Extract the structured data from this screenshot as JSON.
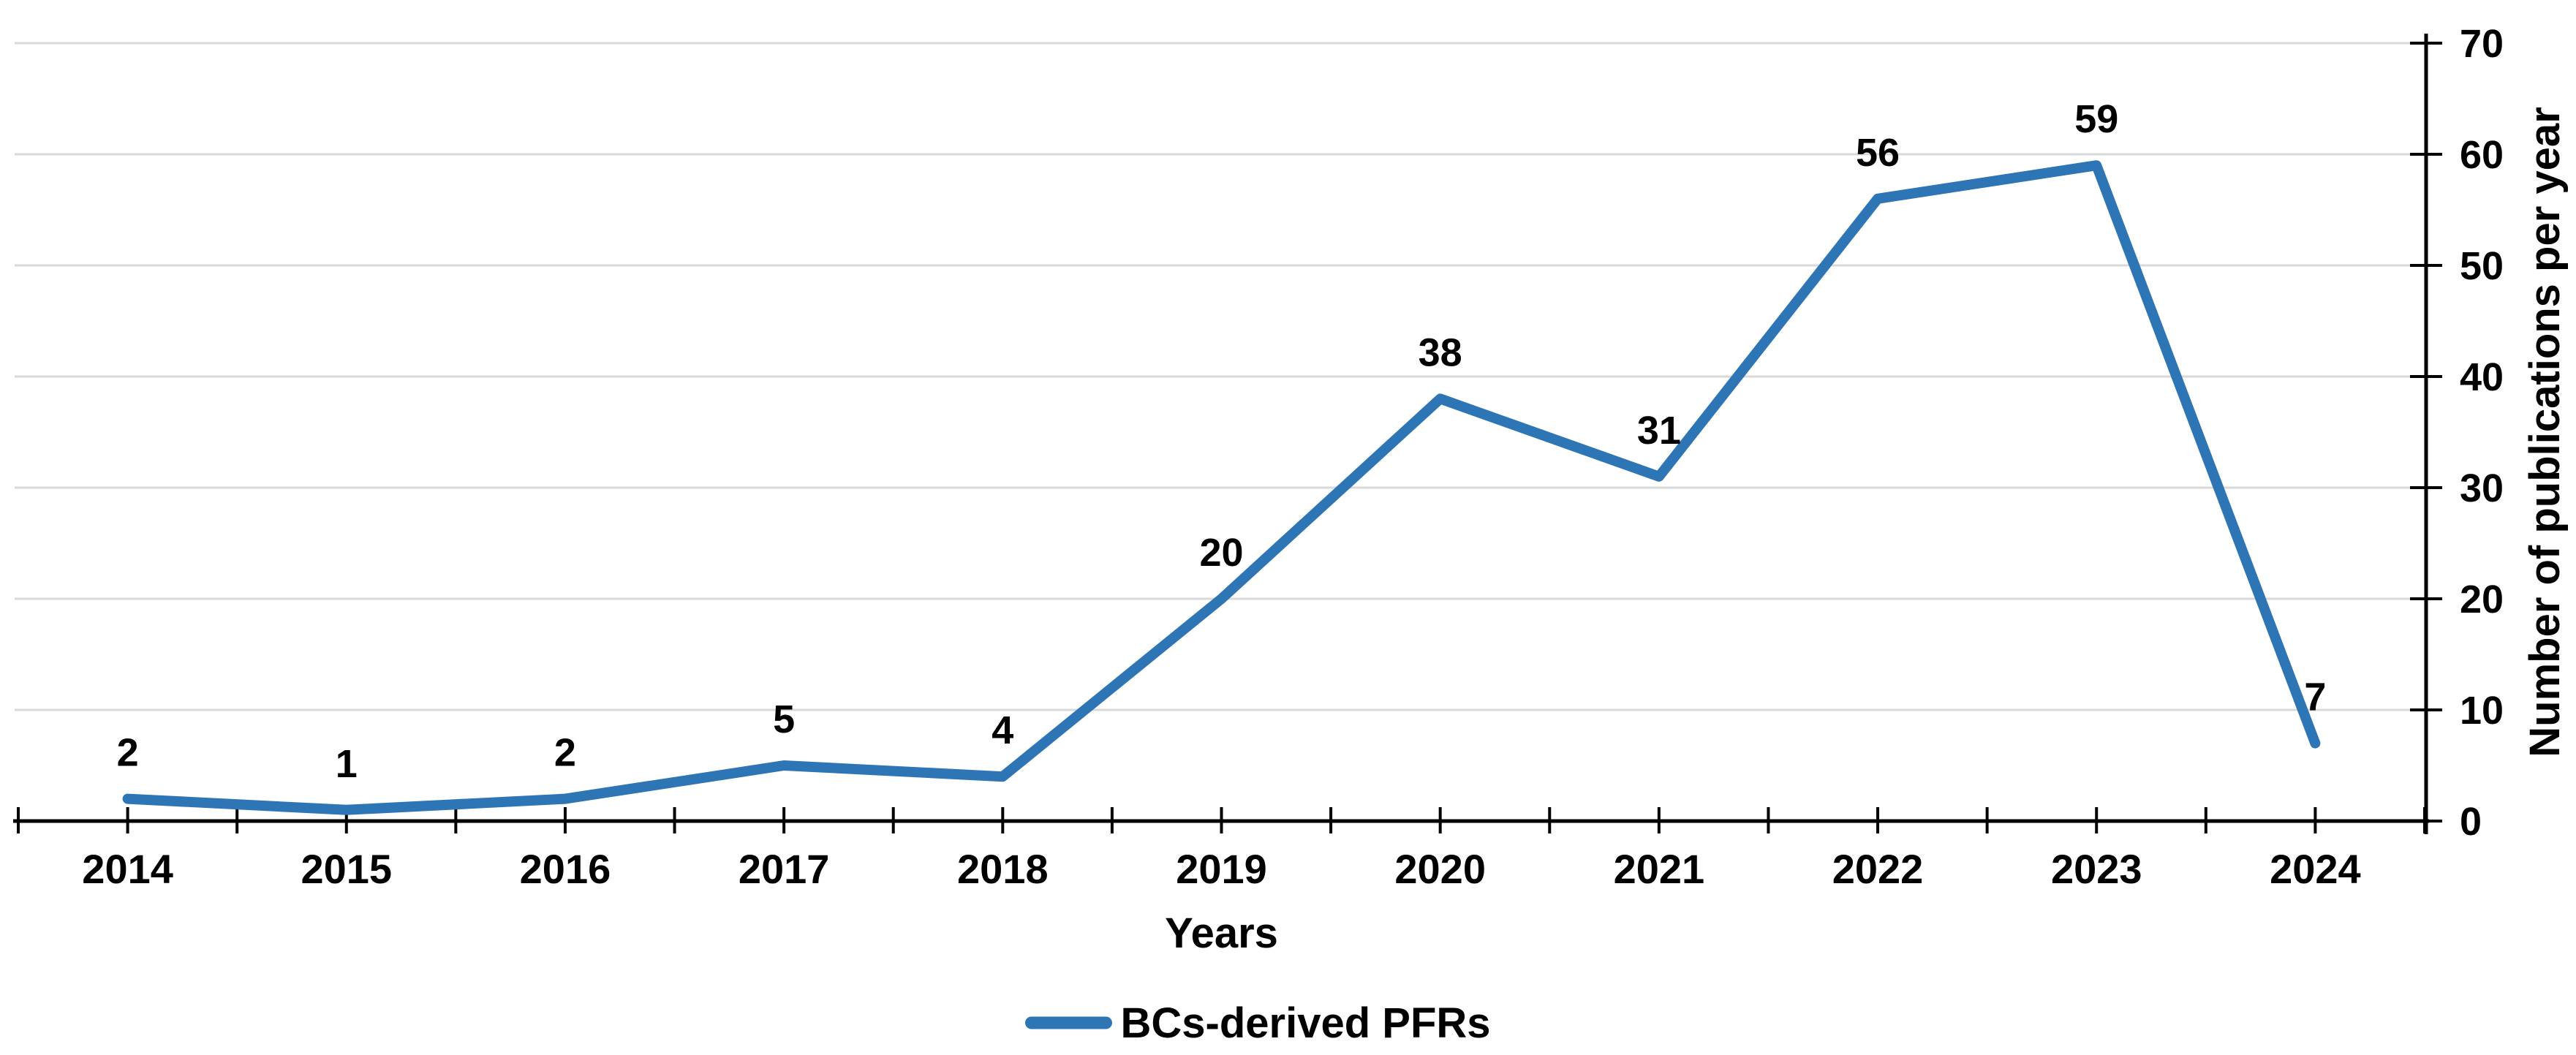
{
  "chart_data": {
    "type": "line",
    "title": "",
    "xlabel": "Years",
    "ylabel": "Number of publications per year",
    "categories": [
      "2014",
      "2015",
      "2016",
      "2017",
      "2018",
      "2019",
      "2020",
      "2021",
      "2022",
      "2023",
      "2024"
    ],
    "series": [
      {
        "name": "BCs-derived PFRs",
        "color": "#2E75B6",
        "values": [
          2,
          1,
          2,
          5,
          4,
          20,
          38,
          31,
          56,
          59,
          7
        ]
      }
    ],
    "data_label_values": [
      "2",
      "1",
      "2",
      "5",
      "4",
      "20",
      "38",
      "31",
      "56",
      "59",
      "7"
    ],
    "ylim": [
      0,
      70
    ],
    "yticks": [
      0,
      10,
      20,
      30,
      40,
      50,
      60,
      70
    ],
    "ytick_labels": [
      "0",
      "10",
      "20",
      "30",
      "40",
      "50",
      "60",
      "70"
    ],
    "y_axis_side": "right",
    "grid": "horizontal",
    "gridline_color": "#D9D9D9",
    "axis_color": "#000000",
    "text_color": "#000000",
    "background_color": "#FFFFFF",
    "legend_position": "bottom",
    "data_labels": "above"
  },
  "legend": {
    "items": [
      {
        "label": "BCs-derived PFRs",
        "color": "#2E75B6"
      }
    ]
  }
}
